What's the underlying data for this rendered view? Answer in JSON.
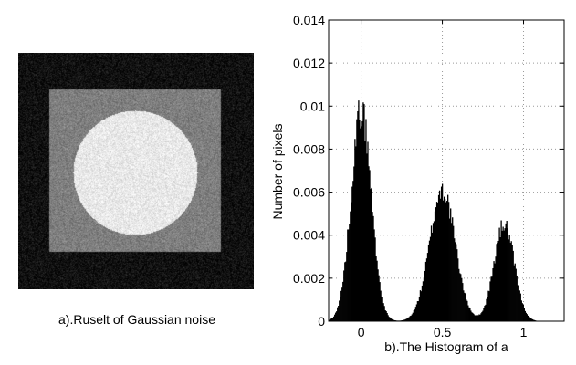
{
  "panel_a": {
    "caption": "a).Ruselt of Gaussian noise",
    "colors": {
      "outer": "#111111",
      "square": "#7f7f7f",
      "disk": "#e9e9e9"
    }
  },
  "chart_data": {
    "type": "bar",
    "title": "",
    "xlabel": "b).The Histogram of a",
    "ylabel": "Number of pixels",
    "xlim": [
      -0.2,
      1.25
    ],
    "ylim": [
      0,
      0.014
    ],
    "xticks": [
      0,
      0.5,
      1
    ],
    "xtick_labels": [
      "0",
      "0.5",
      "1"
    ],
    "yticks": [
      0,
      0.002,
      0.004,
      0.006,
      0.008,
      0.01,
      0.012,
      0.014
    ],
    "ytick_labels": [
      "0",
      "0.002",
      "0.004",
      "0.006",
      "0.008",
      "0.01",
      "0.012",
      "0.014"
    ],
    "grid": true,
    "bar_color": "#000000",
    "peaks": [
      {
        "center": 0.0,
        "height": 0.0098
      },
      {
        "center": 0.5,
        "height": 0.0061
      },
      {
        "center": 0.88,
        "height": 0.0045
      }
    ],
    "x": [
      -0.2,
      -0.15,
      -0.1,
      -0.05,
      0.0,
      0.05,
      0.1,
      0.15,
      0.2,
      0.25,
      0.3,
      0.35,
      0.4,
      0.45,
      0.5,
      0.55,
      0.6,
      0.65,
      0.7,
      0.75,
      0.8,
      0.85,
      0.9,
      0.95,
      1.0,
      1.05,
      1.1,
      1.15,
      1.2
    ],
    "values": [
      0.0003,
      0.0011,
      0.0031,
      0.0068,
      0.0096,
      0.0074,
      0.0036,
      0.0012,
      0.0004,
      0.0009,
      0.0024,
      0.0041,
      0.0052,
      0.0056,
      0.0058,
      0.0053,
      0.0037,
      0.0019,
      0.0009,
      0.0013,
      0.0027,
      0.0038,
      0.0042,
      0.0035,
      0.0021,
      0.0007,
      0.0002,
      0.0001,
      0.0
    ]
  }
}
